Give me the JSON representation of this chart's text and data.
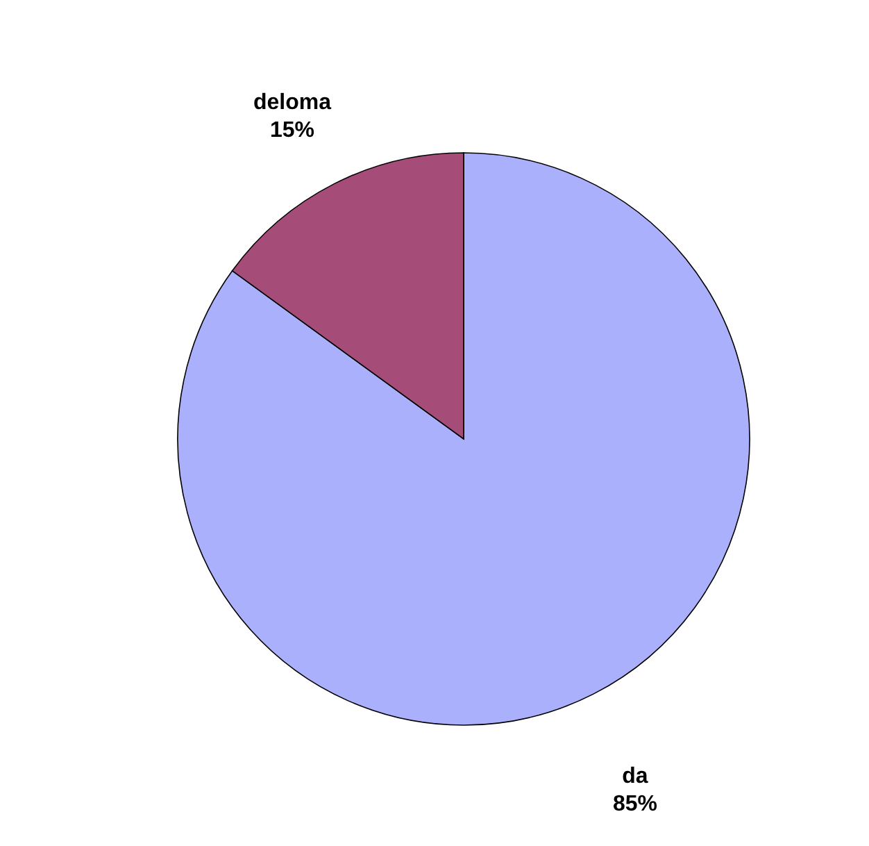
{
  "chart_data": {
    "type": "pie",
    "categories": [
      "da",
      "deloma"
    ],
    "values": [
      85,
      15
    ],
    "colors": [
      "#aab0fc",
      "#a64c78"
    ],
    "value_labels": [
      "85%",
      "15%"
    ]
  }
}
